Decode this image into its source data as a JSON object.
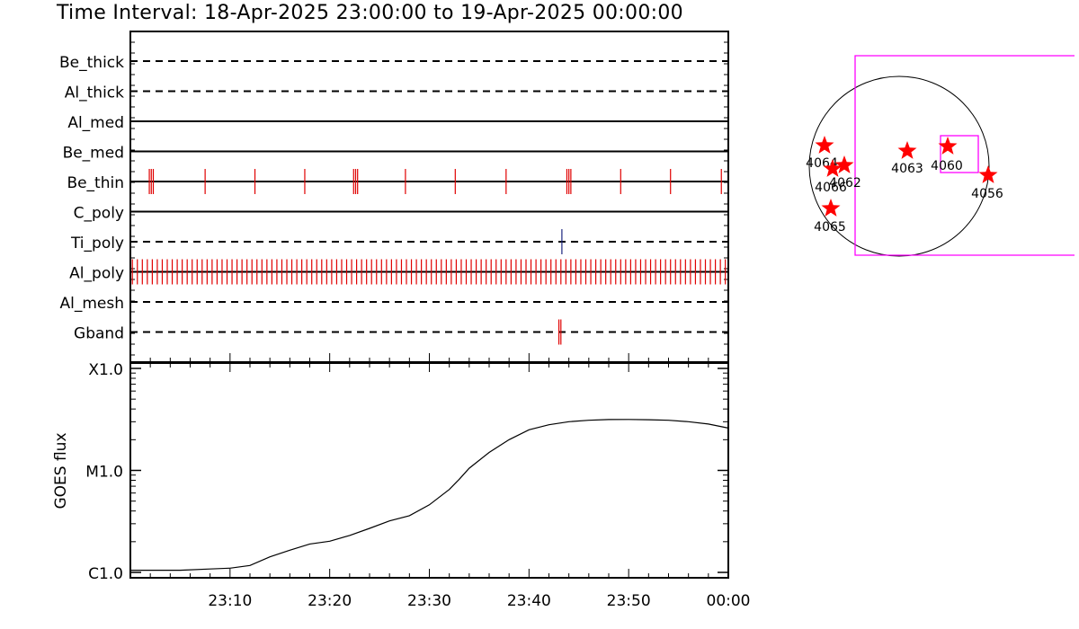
{
  "title": "Time Interval: 18-Apr-2025 23:00:00 to 19-Apr-2025 00:00:00",
  "chart_data": [
    {
      "type": "timeline",
      "x_range_minutes": [
        0,
        60
      ],
      "rows": [
        {
          "label": "Be_thick",
          "line_style": "dashed",
          "events": []
        },
        {
          "label": "Al_thick",
          "line_style": "dashed",
          "events": []
        },
        {
          "label": "Al_med",
          "line_style": "solid",
          "events": []
        },
        {
          "label": "Be_med",
          "line_style": "solid",
          "events": []
        },
        {
          "label": "Be_thin",
          "line_style": "solid",
          "event_color": "#e00000",
          "events": [
            1.9,
            2.1,
            2.3,
            7.5,
            12.5,
            17.5,
            22.4,
            22.6,
            22.8,
            27.6,
            32.6,
            37.7,
            43.8,
            44.0,
            44.2,
            49.2,
            54.2,
            59.3
          ]
        },
        {
          "label": "C_poly",
          "line_style": "solid",
          "events": []
        },
        {
          "label": "Ti_poly",
          "line_style": "dashed",
          "event_color": "#1a237e",
          "events": [
            43.3
          ]
        },
        {
          "label": "Al_poly",
          "line_style": "solid",
          "event_color": "#e00000",
          "event_period_min": 0.5,
          "events_range": [
            0.2,
            59.7
          ]
        },
        {
          "label": "Al_mesh",
          "line_style": "dashed",
          "events": []
        },
        {
          "label": "Gband",
          "line_style": "dashed",
          "event_color": "#e00000",
          "events": [
            43.0,
            43.2
          ]
        }
      ]
    },
    {
      "type": "line",
      "ylabel": "GOES flux",
      "y_scale": "log",
      "y_ticks": [
        "C1.0",
        "M1.0",
        "X1.0"
      ],
      "ylim": [
        1e-06,
        0.0001
      ],
      "x_ticks": [
        "23:10",
        "23:20",
        "23:30",
        "23:40",
        "23:50",
        "00:00"
      ],
      "x_tick_minutes": [
        10,
        20,
        30,
        40,
        50,
        60
      ],
      "x": [
        0,
        5,
        8,
        10,
        12,
        14,
        16,
        18,
        20,
        22,
        24,
        26,
        28,
        30,
        32,
        33,
        34,
        36,
        38,
        40,
        42,
        44,
        46,
        48,
        50,
        52,
        54,
        56,
        58,
        60
      ],
      "y": [
        1.05e-06,
        1.05e-06,
        1.08e-06,
        1.1e-06,
        1.17e-06,
        1.42e-06,
        1.65e-06,
        1.9e-06,
        2.02e-06,
        2.3e-06,
        2.7e-06,
        3.2e-06,
        3.6e-06,
        4.6e-06,
        6.5e-06,
        8.2e-06,
        1.05e-05,
        1.5e-05,
        2e-05,
        2.5e-05,
        2.8e-05,
        3e-05,
        3.1e-05,
        3.15e-05,
        3.16e-05,
        3.14e-05,
        3.1e-05,
        3e-05,
        2.85e-05,
        2.6e-05
      ]
    }
  ],
  "sun_map": {
    "regions": [
      {
        "label": "4064",
        "star_label": "4064"
      },
      {
        "label": "4062",
        "star_label": "4062"
      },
      {
        "label": "4066",
        "star_label": "4066"
      },
      {
        "label": "4065",
        "star_label": "4065"
      },
      {
        "label": "4063",
        "star_label": "4063"
      },
      {
        "label": "4060",
        "star_label": "4060"
      },
      {
        "label": "4056",
        "star_label": "4056"
      }
    ],
    "colors": {
      "fov": "#ff00ff",
      "star": "#ff0000",
      "disk": "#000000"
    }
  }
}
